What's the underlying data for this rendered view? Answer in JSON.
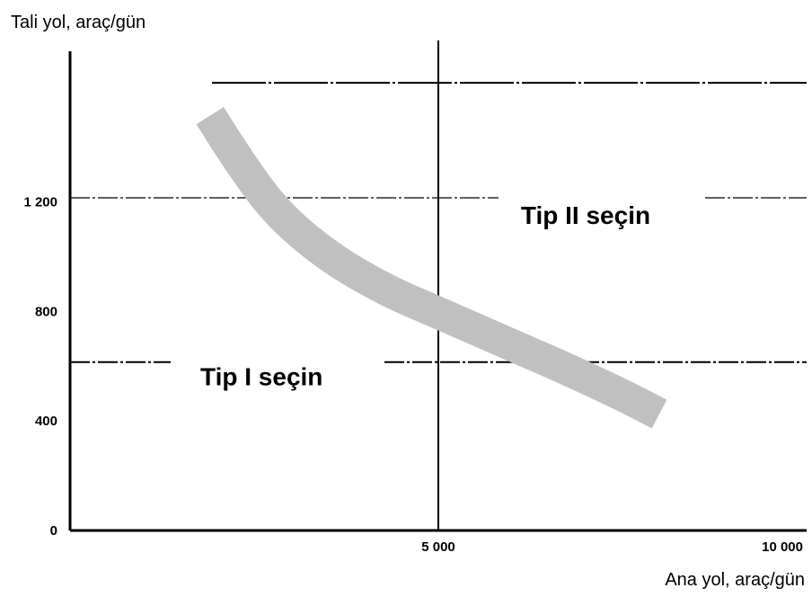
{
  "chart_data": {
    "type": "line",
    "xlabel": "Ana yol, araç/gün",
    "ylabel": "Tali yol, araç/gün",
    "xlim": [
      0,
      10000
    ],
    "ylim": [
      0,
      1400
    ],
    "x_ticks": [
      {
        "value": 5000,
        "label": "5 000"
      },
      {
        "value": 10000,
        "label": "10 000"
      }
    ],
    "y_ticks": [
      {
        "value": 0,
        "label": "0"
      },
      {
        "value": 400,
        "label": "400"
      },
      {
        "value": 800,
        "label": "800"
      },
      {
        "value": 1200,
        "label": "1 200"
      }
    ],
    "grid": "dash-dot reference lines",
    "reference_lines": {
      "vertical_x": 5000,
      "horizontal_y": [
        615,
        1215,
        1635
      ]
    },
    "series": [
      {
        "color": "#c0c0c0",
        "x": [
          1900,
          2300,
          2800,
          3500,
          4300,
          5000,
          5800,
          6700,
          7500,
          8000
        ],
        "y": [
          1515,
          1345,
          1160,
          1000,
          875,
          795,
          700,
          595,
          495,
          425
        ]
      }
    ],
    "regions": [
      {
        "label": "Tip I seçin",
        "x": 2600,
        "y": 530
      },
      {
        "label": "Tip II seçin",
        "x": 7000,
        "y": 1120
      }
    ]
  }
}
